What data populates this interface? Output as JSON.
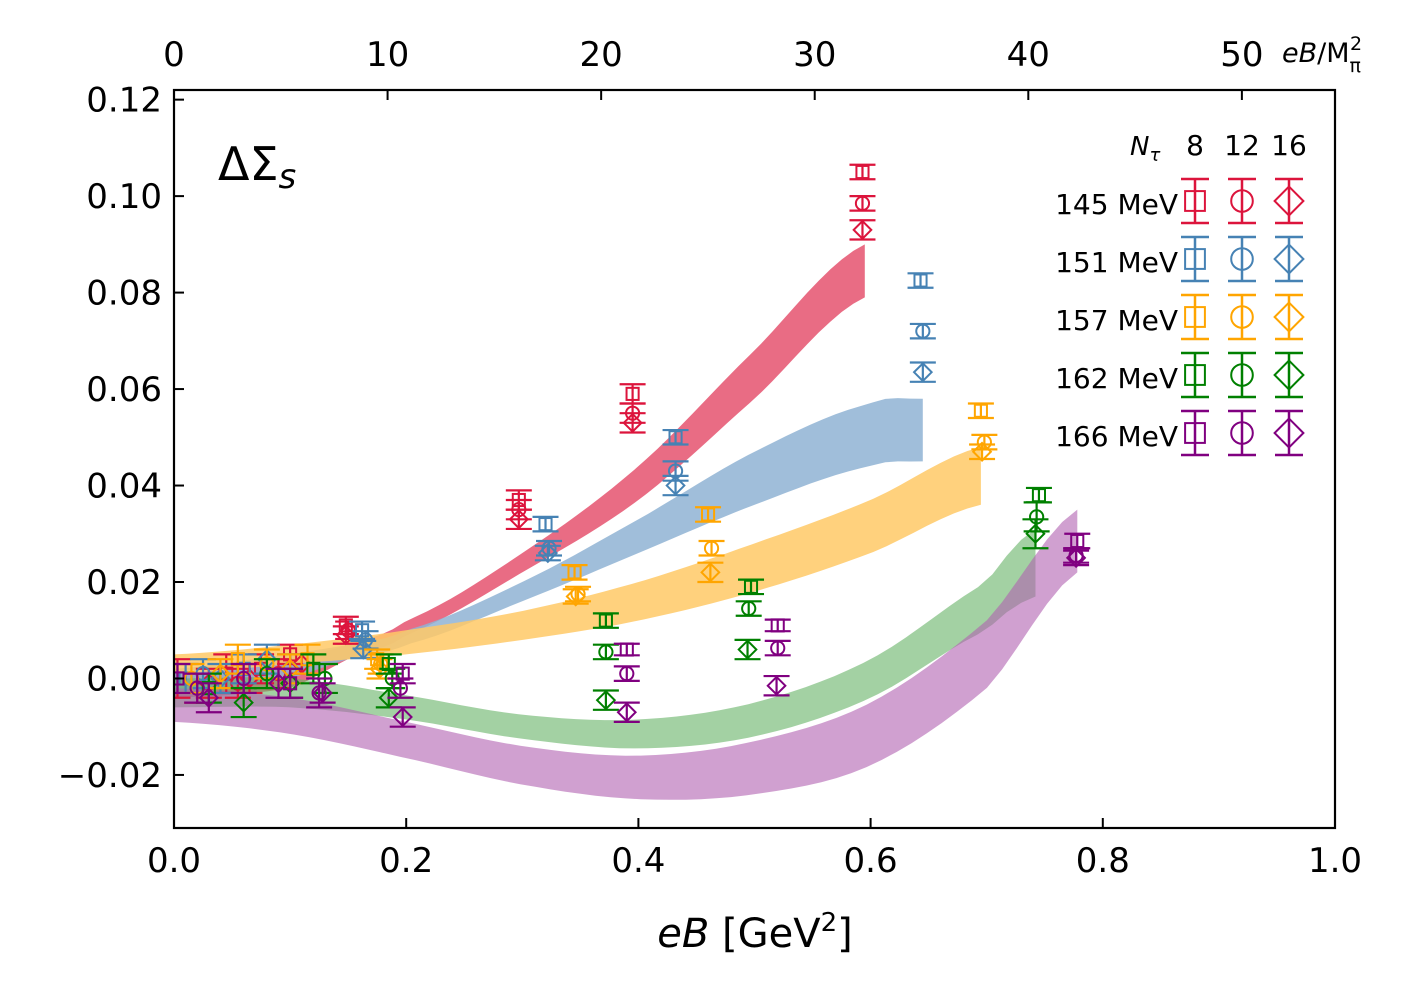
{
  "chart_data": {
    "type": "scatter",
    "title": "",
    "panel_label_main": "ΔΣ",
    "panel_label_sub": "s",
    "xlabel_italic": "eB",
    "xlabel_rest": " [GeV",
    "xlabel_sup": "2",
    "xlabel_close": "]",
    "top_axis_label_italic": "eB",
    "top_axis_label_rest": "/M",
    "top_axis_label_sub": "π",
    "top_axis_label_sup": "2",
    "xlim": [
      0.0,
      1.0
    ],
    "ylim": [
      -0.031,
      0.122
    ],
    "top_xlim": [
      0,
      54.36
    ],
    "x_ticks": [
      "0.0",
      "0.2",
      "0.4",
      "0.6",
      "0.8",
      "1.0"
    ],
    "x_tick_values": [
      0.0,
      0.2,
      0.4,
      0.6,
      0.8,
      1.0
    ],
    "y_ticks": [
      "−0.02",
      "0.00",
      "0.02",
      "0.04",
      "0.06",
      "0.08",
      "0.10",
      "0.12"
    ],
    "y_tick_values": [
      -0.02,
      0.0,
      0.02,
      0.04,
      0.06,
      0.08,
      0.1,
      0.12
    ],
    "top_ticks": [
      "0",
      "10",
      "20",
      "30",
      "40",
      "50"
    ],
    "top_tick_values": [
      0,
      10,
      20,
      30,
      40,
      50
    ],
    "legend": {
      "nt_label": "N",
      "nt_sub": "τ",
      "nt_values": [
        "8",
        "12",
        "16"
      ],
      "placement": "top-right"
    },
    "series": [
      {
        "name": "145 MeV",
        "color": "#dc143c",
        "band_color": "#e5526e",
        "band_x_max": 0.595,
        "band_lower": [
          [
            0.0,
            -0.004
          ],
          [
            0.1,
            -0.002
          ],
          [
            0.15,
            0.004
          ],
          [
            0.2,
            0.009
          ],
          [
            0.3,
            0.022
          ],
          [
            0.4,
            0.037
          ],
          [
            0.5,
            0.058
          ],
          [
            0.595,
            0.079
          ]
        ],
        "band_upper": [
          [
            0.0,
            0.001
          ],
          [
            0.1,
            0.004
          ],
          [
            0.15,
            0.007
          ],
          [
            0.2,
            0.012
          ],
          [
            0.3,
            0.026
          ],
          [
            0.4,
            0.044
          ],
          [
            0.5,
            0.068
          ],
          [
            0.595,
            0.09
          ]
        ],
        "points": [
          [
            0.003,
            0.0,
            0.004,
            8
          ],
          [
            0.02,
            -0.002,
            0.003,
            12
          ],
          [
            0.03,
            -0.001,
            0.003,
            16
          ],
          [
            0.045,
            0.001,
            0.004,
            8
          ],
          [
            0.055,
            -0.001,
            0.003,
            12
          ],
          [
            0.065,
            0.0,
            0.003,
            16
          ],
          [
            0.075,
            0.002,
            0.003,
            8
          ],
          [
            0.09,
            0.001,
            0.003,
            12
          ],
          [
            0.1,
            0.005,
            0.002,
            8
          ],
          [
            0.11,
            0.003,
            0.002,
            16
          ],
          [
            0.148,
            0.011,
            0.0018,
            8
          ],
          [
            0.15,
            0.01,
            0.0018,
            12
          ],
          [
            0.148,
            0.009,
            0.0018,
            16
          ],
          [
            0.297,
            0.037,
            0.002,
            8
          ],
          [
            0.297,
            0.035,
            0.002,
            12
          ],
          [
            0.297,
            0.033,
            0.002,
            16
          ],
          [
            0.395,
            0.059,
            0.002,
            8
          ],
          [
            0.395,
            0.055,
            0.002,
            12
          ],
          [
            0.395,
            0.053,
            0.002,
            16
          ],
          [
            0.593,
            0.105,
            0.0015,
            8
          ],
          [
            0.593,
            0.0985,
            0.0015,
            12
          ],
          [
            0.593,
            0.093,
            0.002,
            16
          ]
        ]
      },
      {
        "name": "151 MeV",
        "color": "#4682b4",
        "band_color": "#8fb3d3",
        "band_x_max": 0.645,
        "band_lower": [
          [
            0.0,
            -0.003
          ],
          [
            0.1,
            0.0
          ],
          [
            0.15,
            0.004
          ],
          [
            0.2,
            0.007
          ],
          [
            0.3,
            0.016
          ],
          [
            0.4,
            0.026
          ],
          [
            0.5,
            0.036
          ],
          [
            0.6,
            0.044
          ],
          [
            0.645,
            0.045
          ]
        ],
        "band_upper": [
          [
            0.0,
            0.002
          ],
          [
            0.1,
            0.005
          ],
          [
            0.15,
            0.007
          ],
          [
            0.2,
            0.01
          ],
          [
            0.3,
            0.02
          ],
          [
            0.4,
            0.033
          ],
          [
            0.5,
            0.047
          ],
          [
            0.6,
            0.057
          ],
          [
            0.645,
            0.058
          ]
        ],
        "points": [
          [
            0.01,
            0.0,
            0.003,
            8
          ],
          [
            0.025,
            0.001,
            0.003,
            12
          ],
          [
            0.04,
            0.0,
            0.003,
            16
          ],
          [
            0.06,
            0.002,
            0.003,
            8
          ],
          [
            0.08,
            0.004,
            0.003,
            16
          ],
          [
            0.1,
            0.002,
            0.003,
            12
          ],
          [
            0.162,
            0.01,
            0.0018,
            8
          ],
          [
            0.165,
            0.008,
            0.0018,
            12
          ],
          [
            0.163,
            0.006,
            0.0018,
            16
          ],
          [
            0.32,
            0.032,
            0.0015,
            8
          ],
          [
            0.323,
            0.027,
            0.0015,
            12
          ],
          [
            0.322,
            0.026,
            0.0015,
            16
          ],
          [
            0.432,
            0.05,
            0.0015,
            8
          ],
          [
            0.432,
            0.043,
            0.002,
            12
          ],
          [
            0.432,
            0.04,
            0.002,
            16
          ],
          [
            0.643,
            0.0825,
            0.0015,
            8
          ],
          [
            0.645,
            0.072,
            0.0015,
            12
          ],
          [
            0.645,
            0.0635,
            0.002,
            16
          ]
        ]
      },
      {
        "name": "157 MeV",
        "color": "#ffa500",
        "band_color": "#ffc966",
        "band_x_max": 0.695,
        "band_lower": [
          [
            0.0,
            0.001
          ],
          [
            0.1,
            0.003
          ],
          [
            0.2,
            0.005
          ],
          [
            0.3,
            0.008
          ],
          [
            0.4,
            0.012
          ],
          [
            0.5,
            0.018
          ],
          [
            0.6,
            0.026
          ],
          [
            0.695,
            0.036
          ]
        ],
        "band_upper": [
          [
            0.0,
            0.005
          ],
          [
            0.1,
            0.007
          ],
          [
            0.2,
            0.01
          ],
          [
            0.3,
            0.014
          ],
          [
            0.4,
            0.02
          ],
          [
            0.5,
            0.028
          ],
          [
            0.6,
            0.037
          ],
          [
            0.695,
            0.048
          ]
        ],
        "points": [
          [
            0.015,
            0.0,
            0.003,
            12
          ],
          [
            0.04,
            0.001,
            0.003,
            16
          ],
          [
            0.055,
            0.004,
            0.003,
            8
          ],
          [
            0.08,
            0.003,
            0.003,
            12
          ],
          [
            0.1,
            0.002,
            0.003,
            16
          ],
          [
            0.115,
            0.004,
            0.003,
            8
          ],
          [
            0.175,
            0.004,
            0.002,
            8
          ],
          [
            0.178,
            0.003,
            0.002,
            12
          ],
          [
            0.177,
            0.002,
            0.002,
            16
          ],
          [
            0.345,
            0.022,
            0.0015,
            8
          ],
          [
            0.348,
            0.0175,
            0.0015,
            12
          ],
          [
            0.346,
            0.017,
            0.0015,
            16
          ],
          [
            0.46,
            0.034,
            0.0015,
            8
          ],
          [
            0.463,
            0.027,
            0.0015,
            12
          ],
          [
            0.462,
            0.022,
            0.002,
            16
          ],
          [
            0.695,
            0.0555,
            0.0015,
            8
          ],
          [
            0.698,
            0.049,
            0.0015,
            12
          ],
          [
            0.696,
            0.047,
            0.0015,
            16
          ]
        ]
      },
      {
        "name": "162 MeV",
        "color": "#008000",
        "band_color": "#66b266",
        "band_x_max": 0.742,
        "band_lower": [
          [
            0.0,
            -0.006
          ],
          [
            0.1,
            -0.006
          ],
          [
            0.2,
            -0.0085
          ],
          [
            0.3,
            -0.0125
          ],
          [
            0.4,
            -0.0145
          ],
          [
            0.5,
            -0.012
          ],
          [
            0.6,
            -0.004
          ],
          [
            0.7,
            0.01
          ],
          [
            0.742,
            0.017
          ]
        ],
        "band_upper": [
          [
            0.0,
            0.0
          ],
          [
            0.1,
            0.0
          ],
          [
            0.2,
            -0.0035
          ],
          [
            0.3,
            -0.0075
          ],
          [
            0.4,
            -0.0085
          ],
          [
            0.5,
            -0.005
          ],
          [
            0.6,
            0.004
          ],
          [
            0.7,
            0.02
          ],
          [
            0.742,
            0.031
          ]
        ],
        "points": [
          [
            0.03,
            -0.002,
            0.003,
            8
          ],
          [
            0.06,
            -0.005,
            0.003,
            16
          ],
          [
            0.08,
            0.001,
            0.003,
            12
          ],
          [
            0.1,
            -0.001,
            0.003,
            16
          ],
          [
            0.12,
            0.002,
            0.003,
            8
          ],
          [
            0.13,
            0.0,
            0.003,
            12
          ],
          [
            0.185,
            0.003,
            0.002,
            8
          ],
          [
            0.188,
            0.0,
            0.002,
            12
          ],
          [
            0.185,
            -0.004,
            0.002,
            16
          ],
          [
            0.372,
            0.012,
            0.0015,
            8
          ],
          [
            0.372,
            0.0055,
            0.0015,
            12
          ],
          [
            0.372,
            -0.0045,
            0.002,
            16
          ],
          [
            0.497,
            0.019,
            0.0015,
            8
          ],
          [
            0.495,
            0.0145,
            0.0015,
            12
          ],
          [
            0.494,
            0.006,
            0.002,
            16
          ],
          [
            0.745,
            0.038,
            0.0015,
            8
          ],
          [
            0.743,
            0.0335,
            0.003,
            12
          ],
          [
            0.742,
            0.03,
            0.003,
            16
          ]
        ]
      },
      {
        "name": "166 MeV",
        "color": "#800080",
        "band_color": "#b060b0",
        "band_x_max": 0.778,
        "band_lower": [
          [
            0.0,
            -0.009
          ],
          [
            0.1,
            -0.0115
          ],
          [
            0.2,
            -0.0165
          ],
          [
            0.3,
            -0.022
          ],
          [
            0.4,
            -0.025
          ],
          [
            0.5,
            -0.024
          ],
          [
            0.6,
            -0.018
          ],
          [
            0.7,
            -0.002
          ],
          [
            0.778,
            0.022
          ]
        ],
        "band_upper": [
          [
            0.0,
            -0.002
          ],
          [
            0.1,
            -0.004
          ],
          [
            0.2,
            -0.009
          ],
          [
            0.3,
            -0.014
          ],
          [
            0.4,
            -0.016
          ],
          [
            0.5,
            -0.013
          ],
          [
            0.6,
            -0.005
          ],
          [
            0.7,
            0.012
          ],
          [
            0.778,
            0.035
          ]
        ],
        "points": [
          [
            0.003,
            0.0,
            0.003,
            8
          ],
          [
            0.02,
            -0.002,
            0.003,
            12
          ],
          [
            0.03,
            -0.004,
            0.003,
            16
          ],
          [
            0.06,
            0.0,
            0.003,
            12
          ],
          [
            0.09,
            -0.001,
            0.003,
            16
          ],
          [
            0.1,
            -0.001,
            0.003,
            8
          ],
          [
            0.125,
            -0.003,
            0.003,
            12
          ],
          [
            0.128,
            -0.003,
            0.002,
            16
          ],
          [
            0.197,
            0.001,
            0.002,
            8
          ],
          [
            0.195,
            -0.002,
            0.002,
            12
          ],
          [
            0.197,
            -0.008,
            0.002,
            16
          ],
          [
            0.39,
            0.006,
            0.0012,
            8
          ],
          [
            0.39,
            0.001,
            0.0015,
            12
          ],
          [
            0.39,
            -0.007,
            0.002,
            16
          ],
          [
            0.52,
            0.011,
            0.0012,
            8
          ],
          [
            0.52,
            0.0063,
            0.0015,
            12
          ],
          [
            0.519,
            -0.0015,
            0.002,
            16
          ],
          [
            0.778,
            0.0285,
            0.0015,
            8
          ],
          [
            0.777,
            0.0255,
            0.0015,
            12
          ],
          [
            0.777,
            0.025,
            0.0015,
            16
          ]
        ]
      }
    ]
  }
}
